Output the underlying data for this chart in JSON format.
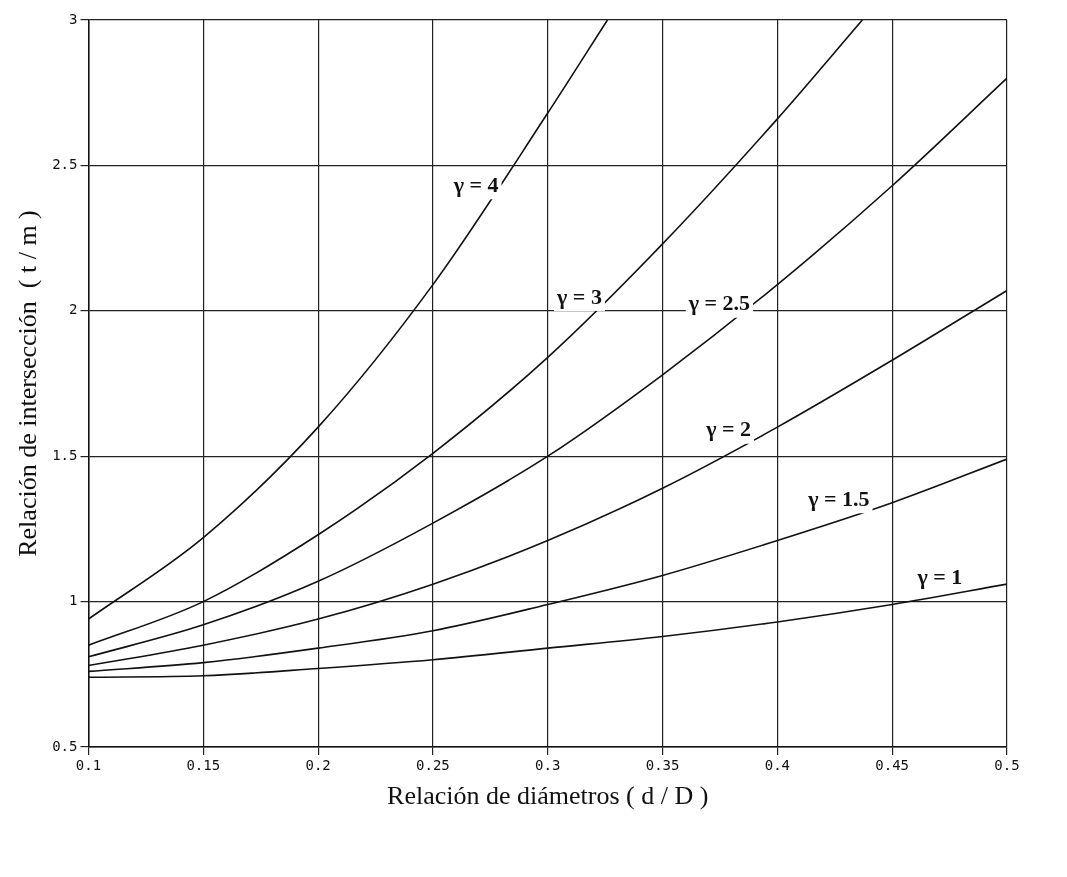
{
  "chart_data": {
    "type": "line",
    "xlabel": "Relación de diámetros ( d / D )",
    "ylabel": "Relación de intersección  ( t / m )",
    "xlim": [
      0.1,
      0.5
    ],
    "xticks": [
      0.1,
      0.15,
      0.2,
      0.25,
      0.3,
      0.35,
      0.4,
      0.45,
      0.5
    ],
    "ylim": [
      0.5,
      3
    ],
    "yticks": [
      0.5,
      1,
      1.5,
      2,
      2.5,
      3
    ],
    "grid": true,
    "legend": false,
    "marker": "none",
    "line_style": "solid",
    "series": [
      {
        "name": "γ = 1",
        "color": "#111111",
        "x": [
          0.1,
          0.15,
          0.2,
          0.25,
          0.3,
          0.35,
          0.4,
          0.45,
          0.5
        ],
        "values": [
          0.74,
          0.745,
          0.77,
          0.8,
          0.84,
          0.88,
          0.93,
          0.99,
          1.06
        ]
      },
      {
        "name": "γ = 1.5",
        "color": "#111111",
        "x": [
          0.1,
          0.15,
          0.2,
          0.25,
          0.3,
          0.35,
          0.4,
          0.45,
          0.5
        ],
        "values": [
          0.76,
          0.79,
          0.84,
          0.9,
          0.99,
          1.09,
          1.21,
          1.34,
          1.49
        ]
      },
      {
        "name": "γ = 2",
        "color": "#111111",
        "x": [
          0.1,
          0.15,
          0.2,
          0.25,
          0.3,
          0.35,
          0.4,
          0.45,
          0.5
        ],
        "values": [
          0.78,
          0.85,
          0.94,
          1.06,
          1.21,
          1.39,
          1.6,
          1.83,
          2.07
        ]
      },
      {
        "name": "γ = 2.5",
        "color": "#111111",
        "x": [
          0.1,
          0.15,
          0.2,
          0.25,
          0.3,
          0.35,
          0.4,
          0.45,
          0.5
        ],
        "values": [
          0.81,
          0.92,
          1.07,
          1.27,
          1.5,
          1.78,
          2.09,
          2.43,
          2.8
        ]
      },
      {
        "name": "γ = 3",
        "color": "#111111",
        "x": [
          0.1,
          0.15,
          0.2,
          0.25,
          0.3,
          0.35,
          0.4,
          0.437
        ],
        "values": [
          0.85,
          1.0,
          1.23,
          1.51,
          1.84,
          2.23,
          2.66,
          3.0
        ]
      },
      {
        "name": "γ = 4",
        "color": "#111111",
        "x": [
          0.1,
          0.15,
          0.2,
          0.25,
          0.3,
          0.326
        ],
        "values": [
          0.94,
          1.22,
          1.6,
          2.09,
          2.68,
          3.0
        ]
      }
    ]
  }
}
